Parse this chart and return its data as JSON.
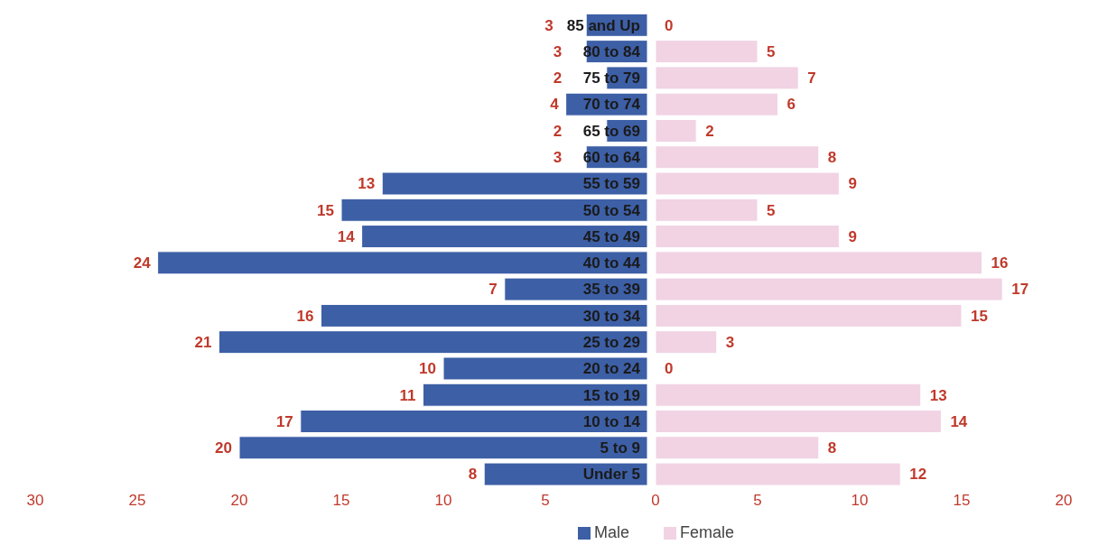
{
  "chart_data": [
    {
      "type": "bar",
      "orientation": "horizontal",
      "categories": [
        "85 and Up",
        "80 to 84",
        "75 to 79",
        "70 to 74",
        "65 to 69",
        "60 to 64",
        "55 to 59",
        "50 to 54",
        "45 to 49",
        "40 to 44",
        "35 to 39",
        "30 to 34",
        "25 to 29",
        "20 to 24",
        "15 to 19",
        "10 to 14",
        "5 to 9",
        "Under 5"
      ],
      "series": [
        {
          "name": "Male",
          "color": "#3d5fa6",
          "values": [
            3,
            3,
            2,
            4,
            2,
            3,
            13,
            15,
            14,
            24,
            7,
            16,
            21,
            10,
            11,
            17,
            20,
            8
          ],
          "value_labels": [
            "3",
            "3",
            "2",
            "4",
            "2",
            "3",
            "13",
            "15",
            "14",
            "24",
            "7",
            "16",
            "21",
            "10",
            "11",
            "17",
            "20",
            "8"
          ]
        }
      ],
      "xlim": [
        30,
        0
      ],
      "xticks": [
        30,
        25,
        20,
        15,
        10,
        5
      ],
      "grid": false,
      "legend": "bottom right"
    },
    {
      "type": "bar",
      "orientation": "horizontal",
      "categories": [
        null,
        null,
        null,
        null,
        null,
        null,
        null,
        null,
        null,
        null,
        null,
        null,
        null,
        null,
        null,
        null,
        null,
        null
      ],
      "series": [
        {
          "name": "Female",
          "color": "#f1d3e4",
          "values": [
            0,
            5,
            7,
            6,
            2,
            8,
            9,
            5,
            9,
            16,
            17,
            15,
            3,
            0,
            13,
            14,
            8,
            12
          ],
          "value_labels": [
            "0",
            "5",
            "7",
            "6",
            "2",
            "8",
            "9",
            "5",
            "9",
            "16",
            "17",
            "15",
            "3",
            "0",
            "13",
            "14",
            "8",
            "12"
          ]
        }
      ],
      "xlim": [
        0,
        20
      ],
      "xticks": [
        0,
        5,
        10,
        15,
        20
      ],
      "grid": false,
      "legend": "bottom left"
    }
  ]
}
